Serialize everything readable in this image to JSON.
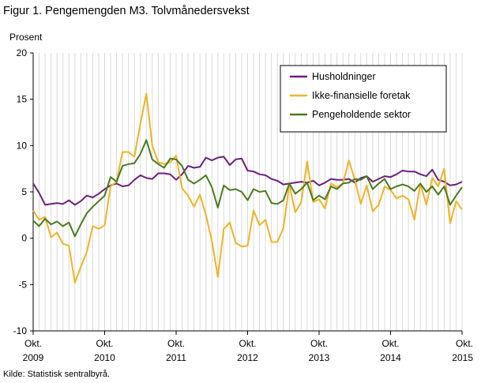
{
  "title": "Figur 1. Pengemengden M3. Tolvmånedersvekst",
  "source": "Kilde: Statistisk sentralbyrå.",
  "chart_data": {
    "type": "line",
    "ylabel": "Prosent",
    "xlabel": "",
    "ylim": [
      -10,
      20
    ],
    "yticks": [
      -10,
      -5,
      0,
      5,
      10,
      15,
      20
    ],
    "x_start": "2009-10",
    "x_end": "2015-10",
    "xticks": [
      {
        "month": "Okt.",
        "year": "2009"
      },
      {
        "month": "Okt.",
        "year": "2010"
      },
      {
        "month": "Okt.",
        "year": "2011"
      },
      {
        "month": "Okt.",
        "year": "2012"
      },
      {
        "month": "Okt.",
        "year": "2013"
      },
      {
        "month": "Okt.",
        "year": "2014"
      },
      {
        "month": "Okt.",
        "year": "2015"
      }
    ],
    "grid": "vertical",
    "legend_position": "top-right",
    "series": [
      {
        "name": "Husholdninger",
        "color": "#6c1f7d",
        "values": [
          5.9,
          4.9,
          3.6,
          3.7,
          3.8,
          3.7,
          4.1,
          3.6,
          4.0,
          4.6,
          4.4,
          4.8,
          5.3,
          5.7,
          5.9,
          5.6,
          5.7,
          6.3,
          6.8,
          6.5,
          6.4,
          7.0,
          7.0,
          6.9,
          6.3,
          6.9,
          7.8,
          7.6,
          7.7,
          8.7,
          8.4,
          8.7,
          8.8,
          7.9,
          8.5,
          8.6,
          7.3,
          7.2,
          6.9,
          6.8,
          6.4,
          6.2,
          5.8,
          5.9,
          6.0,
          6.1,
          6.0,
          6.2,
          5.7,
          6.0,
          6.4,
          6.3,
          6.3,
          6.4,
          6.0,
          6.5,
          6.7,
          6.1,
          6.4,
          6.7,
          6.6,
          6.9,
          7.3,
          7.2,
          7.2,
          6.9,
          6.7,
          7.4,
          6.3,
          6.1,
          5.7,
          5.8,
          6.1
        ]
      },
      {
        "name": "Ikke-finansielle foretak",
        "color": "#f0b323",
        "values": [
          3.0,
          2.0,
          2.3,
          0.1,
          0.6,
          -0.6,
          -0.8,
          -4.8,
          -3.1,
          -1.5,
          1.3,
          1.0,
          1.4,
          5.6,
          6.1,
          9.3,
          9.3,
          8.8,
          12.4,
          15.6,
          10.0,
          8.2,
          8.0,
          8.2,
          8.9,
          5.4,
          4.6,
          3.4,
          4.7,
          2.5,
          -0.3,
          -4.2,
          1.0,
          1.7,
          -0.5,
          -0.9,
          -0.8,
          3.0,
          1.4,
          2.0,
          -0.4,
          -0.4,
          1.1,
          5.8,
          2.8,
          3.9,
          8.3,
          3.9,
          4.2,
          3.2,
          5.9,
          5.5,
          5.9,
          8.4,
          6.3,
          3.7,
          5.7,
          2.9,
          3.6,
          5.6,
          5.2,
          4.3,
          4.6,
          4.2,
          2.0,
          5.9,
          3.6,
          6.5,
          5.6,
          7.5,
          1.6,
          4.0,
          3.1
        ]
      },
      {
        "name": "Pengeholdende sektor",
        "color": "#4a7a1e",
        "values": [
          1.9,
          1.3,
          2.1,
          1.5,
          1.8,
          1.3,
          1.7,
          0.2,
          1.5,
          2.7,
          3.4,
          4.0,
          4.6,
          6.6,
          6.1,
          7.8,
          8.0,
          8.1,
          9.1,
          10.6,
          8.5,
          8.0,
          7.6,
          8.6,
          8.5,
          7.8,
          6.3,
          5.9,
          6.3,
          6.8,
          5.5,
          3.3,
          5.7,
          5.2,
          5.3,
          5.0,
          4.1,
          5.3,
          5.0,
          5.1,
          3.8,
          3.7,
          4.1,
          5.9,
          4.8,
          5.3,
          6.0,
          4.1,
          4.6,
          4.2,
          5.6,
          5.3,
          5.9,
          6.0,
          6.4,
          6.3,
          6.7,
          5.3,
          5.9,
          6.4,
          5.3,
          5.6,
          5.8,
          5.6,
          5.1,
          5.9,
          5.0,
          5.6,
          4.7,
          5.6,
          3.6,
          4.6,
          5.5
        ]
      }
    ]
  }
}
